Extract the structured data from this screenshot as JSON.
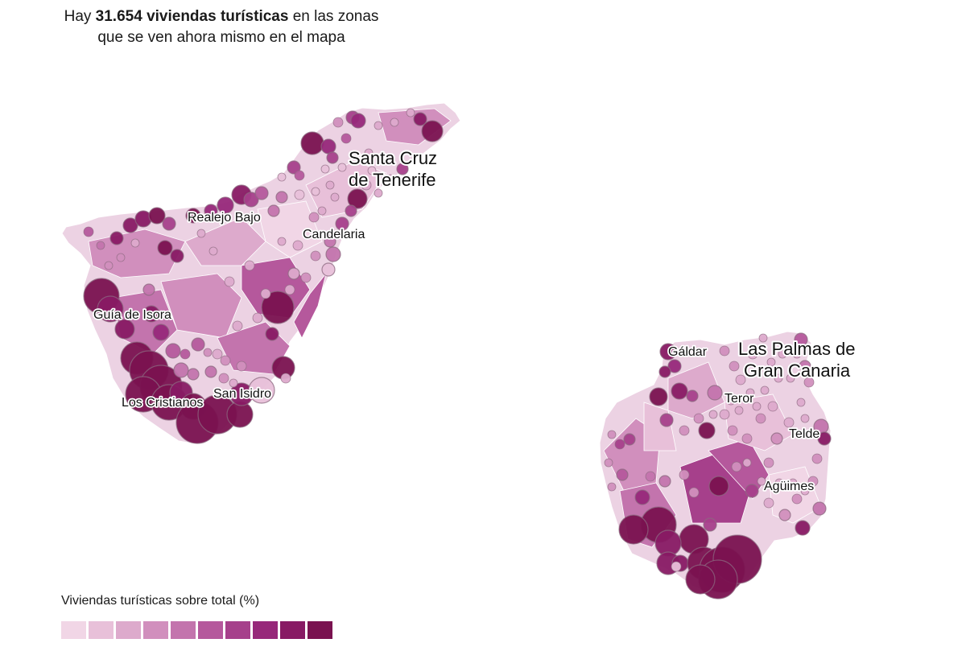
{
  "headline": {
    "prefix": "Hay ",
    "highlight": "31.654 viviendas turísticas",
    "suffix": " en las zonas",
    "line2": "que se ven ahora mismo en el mapa"
  },
  "islands": [
    {
      "name": "Tenerife",
      "labels": [
        "Santa Cruz",
        "de Tenerife",
        "Realejo Bajo",
        "Candelaria",
        "Guía de Isora",
        "San Isidro",
        "Los Cristianos"
      ]
    },
    {
      "name": "Gran Canaria",
      "labels": [
        "Las Palmas de",
        "Gran Canaria",
        "Gáldar",
        "Teror",
        "Telde",
        "Agüimes"
      ]
    }
  ],
  "legend": {
    "title": "Viviendas turísticas sobre total (%)",
    "colors": [
      "#f1d6e6",
      "#e8c0d9",
      "#ddaacc",
      "#d18fbd",
      "#c374ad",
      "#b5589c",
      "#a6408b",
      "#97287a",
      "#881a64",
      "#7a1250"
    ]
  },
  "colors": {
    "bubble_dark": "#7d1650",
    "bubble_mid": "#a03580",
    "bubble_light": "#d7b4cc",
    "land_base": "#ecd2e3"
  }
}
